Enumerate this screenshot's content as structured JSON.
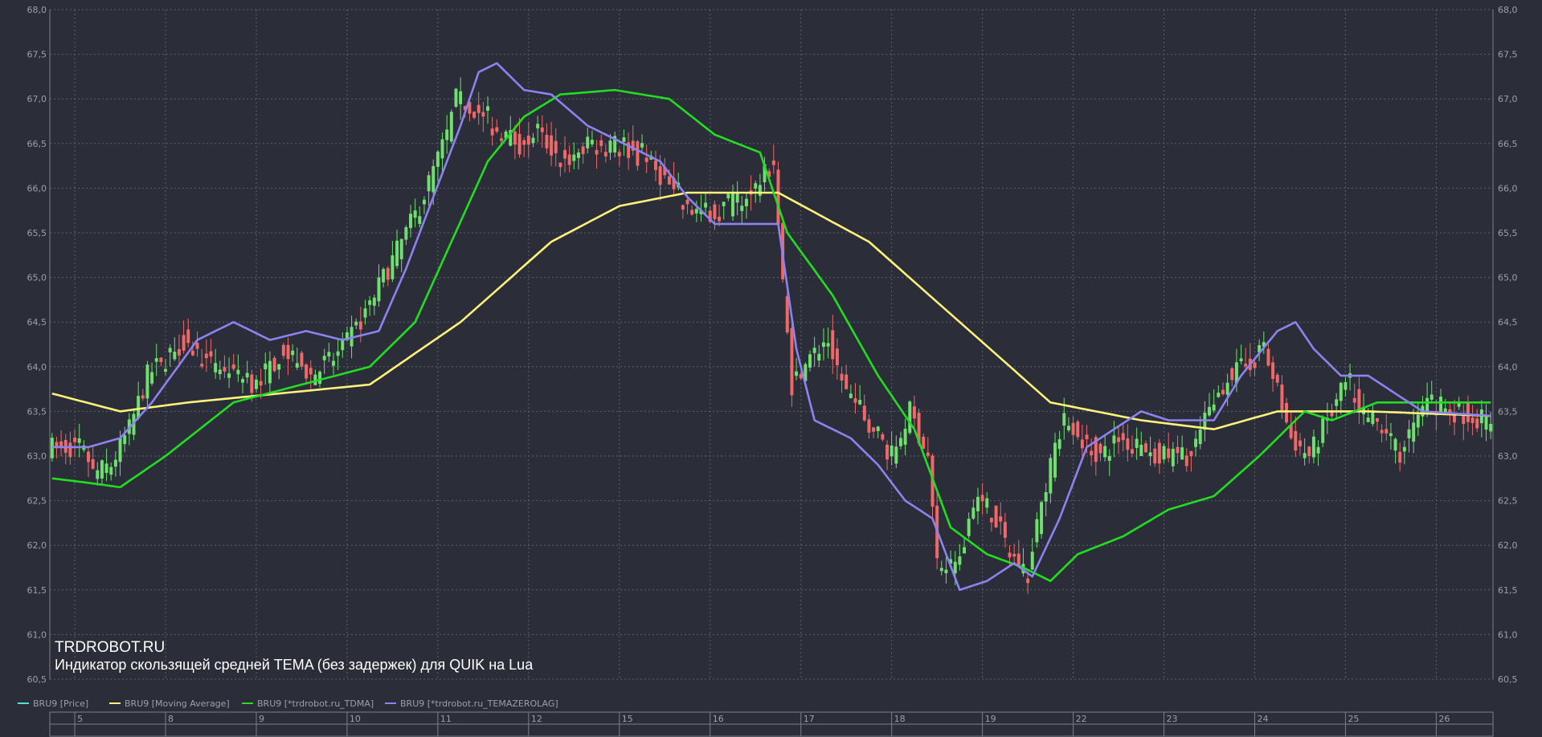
{
  "chart_data": {
    "type": "line",
    "title": "TRDROBOT.RU",
    "subtitle": "Индикатор скользящей средней TEMA (без задержек) для QUIK на Lua",
    "ylim": [
      60.5,
      68.0
    ],
    "y_ticks": [
      "60,5",
      "61,0",
      "61,5",
      "62,0",
      "62,5",
      "63,0",
      "63,5",
      "64,0",
      "64,5",
      "65,0",
      "65,5",
      "66,0",
      "66,5",
      "67,0",
      "67,5",
      "68,0"
    ],
    "grid": true,
    "x_date_labels": [
      "5",
      "8",
      "9",
      "10",
      "11",
      "12",
      "15",
      "16",
      "17",
      "18",
      "19",
      "22",
      "23",
      "24",
      "25",
      "26"
    ],
    "x_date_positions": [
      6,
      26,
      46,
      66,
      86,
      106,
      126,
      146,
      166,
      186,
      206,
      226,
      246,
      266,
      286,
      306
    ],
    "n_bars": 318,
    "legend": [
      {
        "name": "BRU9 [Price]",
        "color": "#4fe0d8"
      },
      {
        "name": "BRU9 [Moving Average]",
        "color": "#fff27a"
      },
      {
        "name": "BRU9 [*trdrobot.ru_TDMA]",
        "color": "#22dd22"
      },
      {
        "name": "BRU9 [*trdrobot.ru_TEMAZEROLAG]",
        "color": "#8c82f0"
      }
    ],
    "candle_colors": {
      "up": "#6fe06f",
      "down": "#f06868"
    },
    "price_path": [
      [
        0,
        63.1
      ],
      [
        8,
        63.1
      ],
      [
        10,
        62.8
      ],
      [
        14,
        62.9
      ],
      [
        18,
        63.3
      ],
      [
        22,
        63.9
      ],
      [
        26,
        64.1
      ],
      [
        30,
        64.3
      ],
      [
        36,
        64.0
      ],
      [
        42,
        63.9
      ],
      [
        46,
        63.8
      ],
      [
        52,
        64.2
      ],
      [
        58,
        63.9
      ],
      [
        64,
        64.1
      ],
      [
        70,
        64.6
      ],
      [
        76,
        65.2
      ],
      [
        82,
        65.8
      ],
      [
        88,
        66.6
      ],
      [
        90,
        67.0
      ],
      [
        94,
        66.9
      ],
      [
        98,
        66.7
      ],
      [
        104,
        66.5
      ],
      [
        108,
        66.6
      ],
      [
        114,
        66.3
      ],
      [
        120,
        66.5
      ],
      [
        126,
        66.5
      ],
      [
        132,
        66.3
      ],
      [
        136,
        66.1
      ],
      [
        140,
        65.8
      ],
      [
        144,
        65.7
      ],
      [
        150,
        65.8
      ],
      [
        156,
        66.0
      ],
      [
        160,
        66.3
      ],
      [
        162,
        64.9
      ],
      [
        164,
        63.8
      ],
      [
        168,
        64.1
      ],
      [
        172,
        64.3
      ],
      [
        176,
        63.7
      ],
      [
        182,
        63.3
      ],
      [
        186,
        63.0
      ],
      [
        190,
        63.5
      ],
      [
        194,
        63.0
      ],
      [
        196,
        61.8
      ],
      [
        200,
        61.7
      ],
      [
        204,
        62.5
      ],
      [
        208,
        62.4
      ],
      [
        212,
        61.9
      ],
      [
        216,
        61.7
      ],
      [
        220,
        62.7
      ],
      [
        224,
        63.4
      ],
      [
        228,
        63.2
      ],
      [
        232,
        63.0
      ],
      [
        236,
        63.2
      ],
      [
        240,
        63.1
      ],
      [
        246,
        63.0
      ],
      [
        252,
        63.0
      ],
      [
        256,
        63.5
      ],
      [
        260,
        63.9
      ],
      [
        264,
        64.0
      ],
      [
        268,
        64.2
      ],
      [
        270,
        63.9
      ],
      [
        274,
        63.2
      ],
      [
        278,
        63.0
      ],
      [
        282,
        63.4
      ],
      [
        286,
        63.8
      ],
      [
        290,
        63.5
      ],
      [
        294,
        63.3
      ],
      [
        298,
        63.0
      ],
      [
        302,
        63.5
      ],
      [
        306,
        63.6
      ],
      [
        310,
        63.5
      ],
      [
        317,
        63.4
      ]
    ],
    "series": [
      {
        "name": "BRU9 [Moving Average]",
        "color": "#fff27a",
        "points": [
          [
            0,
            63.7
          ],
          [
            15,
            63.5
          ],
          [
            30,
            63.6
          ],
          [
            50,
            63.7
          ],
          [
            70,
            63.8
          ],
          [
            90,
            64.5
          ],
          [
            110,
            65.4
          ],
          [
            125,
            65.8
          ],
          [
            140,
            65.95
          ],
          [
            160,
            65.95
          ],
          [
            180,
            65.4
          ],
          [
            200,
            64.5
          ],
          [
            220,
            63.6
          ],
          [
            240,
            63.4
          ],
          [
            256,
            63.3
          ],
          [
            270,
            63.5
          ],
          [
            290,
            63.5
          ],
          [
            317,
            63.45
          ]
        ]
      },
      {
        "name": "BRU9 [*trdrobot.ru_TDMA]",
        "color": "#22dd22",
        "points": [
          [
            0,
            62.75
          ],
          [
            8,
            62.7
          ],
          [
            15,
            62.65
          ],
          [
            25,
            63.0
          ],
          [
            40,
            63.6
          ],
          [
            55,
            63.8
          ],
          [
            70,
            64.0
          ],
          [
            80,
            64.5
          ],
          [
            88,
            65.4
          ],
          [
            96,
            66.3
          ],
          [
            104,
            66.8
          ],
          [
            112,
            67.05
          ],
          [
            124,
            67.1
          ],
          [
            136,
            67.0
          ],
          [
            146,
            66.6
          ],
          [
            156,
            66.4
          ],
          [
            162,
            65.5
          ],
          [
            172,
            64.8
          ],
          [
            182,
            63.9
          ],
          [
            190,
            63.3
          ],
          [
            198,
            62.2
          ],
          [
            206,
            61.9
          ],
          [
            214,
            61.75
          ],
          [
            220,
            61.6
          ],
          [
            226,
            61.9
          ],
          [
            236,
            62.1
          ],
          [
            246,
            62.4
          ],
          [
            256,
            62.55
          ],
          [
            266,
            63.0
          ],
          [
            276,
            63.5
          ],
          [
            282,
            63.4
          ],
          [
            292,
            63.6
          ],
          [
            302,
            63.6
          ],
          [
            317,
            63.6
          ]
        ]
      },
      {
        "name": "BRU9 [*trdrobot.ru_TEMAZEROLAG]",
        "color": "#8c82f0",
        "points": [
          [
            0,
            63.1
          ],
          [
            8,
            63.1
          ],
          [
            15,
            63.2
          ],
          [
            22,
            63.6
          ],
          [
            32,
            64.3
          ],
          [
            40,
            64.5
          ],
          [
            48,
            64.3
          ],
          [
            56,
            64.4
          ],
          [
            64,
            64.3
          ],
          [
            72,
            64.4
          ],
          [
            78,
            65.1
          ],
          [
            84,
            65.9
          ],
          [
            90,
            66.7
          ],
          [
            94,
            67.3
          ],
          [
            98,
            67.4
          ],
          [
            104,
            67.1
          ],
          [
            110,
            67.05
          ],
          [
            118,
            66.7
          ],
          [
            126,
            66.5
          ],
          [
            134,
            66.3
          ],
          [
            140,
            65.9
          ],
          [
            146,
            65.6
          ],
          [
            152,
            65.6
          ],
          [
            156,
            65.6
          ],
          [
            160,
            65.6
          ],
          [
            164,
            64.2
          ],
          [
            168,
            63.4
          ],
          [
            176,
            63.2
          ],
          [
            182,
            62.9
          ],
          [
            188,
            62.5
          ],
          [
            194,
            62.3
          ],
          [
            200,
            61.5
          ],
          [
            206,
            61.6
          ],
          [
            212,
            61.8
          ],
          [
            216,
            61.65
          ],
          [
            222,
            62.3
          ],
          [
            228,
            63.1
          ],
          [
            234,
            63.3
          ],
          [
            240,
            63.5
          ],
          [
            246,
            63.4
          ],
          [
            256,
            63.4
          ],
          [
            262,
            63.9
          ],
          [
            270,
            64.4
          ],
          [
            274,
            64.5
          ],
          [
            278,
            64.2
          ],
          [
            284,
            63.9
          ],
          [
            290,
            63.9
          ],
          [
            296,
            63.7
          ],
          [
            302,
            63.5
          ],
          [
            317,
            63.45
          ]
        ]
      }
    ]
  }
}
